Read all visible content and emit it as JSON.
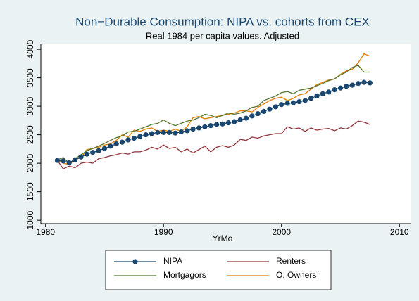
{
  "chart_data": {
    "type": "line",
    "title": "Non−Durable Consumption: NIPA vs. cohorts from CEX",
    "subtitle": "Real 1984 per capita values. Adjusted",
    "x_label": "YrMo",
    "x": [
      1981,
      1981.5,
      1982,
      1982.5,
      1983,
      1983.5,
      1984,
      1984.5,
      1985,
      1985.5,
      1986,
      1986.5,
      1987,
      1987.5,
      1988,
      1988.5,
      1989,
      1989.5,
      1990,
      1990.5,
      1991,
      1991.5,
      1992,
      1992.5,
      1993,
      1993.5,
      1994,
      1994.5,
      1995,
      1995.5,
      1996,
      1996.5,
      1997,
      1997.5,
      1998,
      1998.5,
      1999,
      1999.5,
      2000,
      2000.5,
      2001,
      2001.5,
      2002,
      2002.5,
      2003,
      2003.5,
      2004,
      2004.5,
      2005,
      2005.5,
      2006,
      2006.5,
      2007,
      2007.5
    ],
    "series": [
      {
        "name": "NIPA",
        "color": "#1a476f",
        "marker": true,
        "values": [
          2050,
          2040,
          2010,
          2060,
          2110,
          2160,
          2190,
          2220,
          2260,
          2300,
          2340,
          2370,
          2410,
          2440,
          2470,
          2500,
          2520,
          2540,
          2540,
          2540,
          2530,
          2550,
          2570,
          2600,
          2620,
          2640,
          2660,
          2680,
          2690,
          2710,
          2730,
          2760,
          2790,
          2830,
          2870,
          2910,
          2950,
          2990,
          3030,
          3050,
          3060,
          3080,
          3100,
          3140,
          3180,
          3220,
          3250,
          3290,
          3320,
          3350,
          3370,
          3400,
          3420,
          3410
        ]
      },
      {
        "name": "Renters",
        "color": "#90353b",
        "marker": false,
        "values": [
          2050,
          1900,
          1950,
          1920,
          2000,
          2020,
          2000,
          2080,
          2100,
          2130,
          2150,
          2180,
          2160,
          2200,
          2200,
          2230,
          2280,
          2250,
          2320,
          2260,
          2280,
          2200,
          2250,
          2180,
          2240,
          2300,
          2200,
          2280,
          2310,
          2280,
          2320,
          2420,
          2400,
          2460,
          2440,
          2480,
          2500,
          2520,
          2520,
          2640,
          2600,
          2620,
          2560,
          2620,
          2580,
          2600,
          2610,
          2570,
          2620,
          2600,
          2660,
          2740,
          2720,
          2680
        ]
      },
      {
        "name": "Mortgagors",
        "color": "#55752f",
        "marker": false,
        "values": [
          2060,
          2100,
          2000,
          2080,
          2150,
          2220,
          2260,
          2300,
          2350,
          2400,
          2450,
          2480,
          2550,
          2560,
          2600,
          2640,
          2680,
          2700,
          2760,
          2700,
          2660,
          2700,
          2740,
          2760,
          2800,
          2860,
          2840,
          2800,
          2840,
          2880,
          2860,
          2880,
          2920,
          2980,
          3000,
          3100,
          3140,
          3180,
          3240,
          3260,
          3220,
          3280,
          3300,
          3320,
          3360,
          3400,
          3450,
          3480,
          3550,
          3600,
          3680,
          3720,
          3600,
          3600
        ]
      },
      {
        "name": "O. Owners",
        "color": "#e37e00",
        "marker": false,
        "values": [
          2060,
          2000,
          1980,
          2060,
          2100,
          2240,
          2260,
          2280,
          2320,
          2340,
          2400,
          2500,
          2460,
          2580,
          2560,
          2600,
          2620,
          2560,
          2580,
          2560,
          2600,
          2560,
          2640,
          2800,
          2820,
          2780,
          2800,
          2820,
          2840,
          2860,
          2880,
          2920,
          2920,
          2900,
          2980,
          3040,
          3100,
          3140,
          3160,
          3100,
          3140,
          3200,
          3220,
          3300,
          3380,
          3420,
          3460,
          3480,
          3560,
          3620,
          3650,
          3760,
          3920,
          3880
        ]
      }
    ],
    "xlim": [
      1979.6,
      2011
    ],
    "xticks": [
      1980,
      1990,
      2000,
      2010
    ],
    "ylim": [
      940,
      4100
    ],
    "yticks": [
      1000,
      1500,
      2000,
      2500,
      3000,
      3500,
      4000
    ],
    "grid": false,
    "legend": "bottom"
  }
}
